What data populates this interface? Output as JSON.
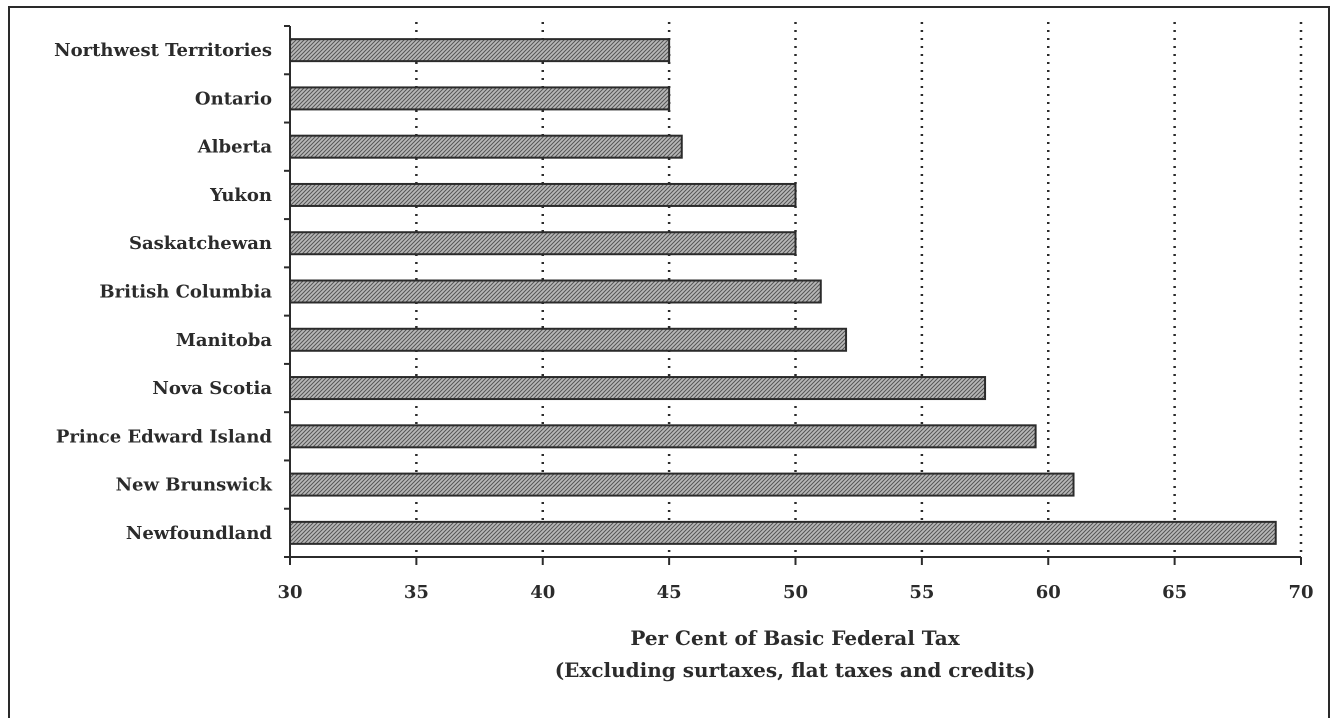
{
  "chart_data": {
    "type": "bar",
    "orientation": "horizontal",
    "categories": [
      "Northwest Territories",
      "Ontario",
      "Alberta",
      "Yukon",
      "Saskatchewan",
      "British Columbia",
      "Manitoba",
      "Nova Scotia",
      "Prince Edward Island",
      "New Brunswick",
      "Newfoundland"
    ],
    "values": [
      45,
      45,
      45.5,
      50,
      50,
      51,
      52,
      57.5,
      59.5,
      61,
      69
    ],
    "xlim": [
      30,
      70
    ],
    "xticks": [
      "30",
      "35",
      "40",
      "45",
      "50",
      "55",
      "60",
      "65",
      "70"
    ],
    "xlabel": "Per Cent of Basic Federal Tax",
    "xlabel_sub": "(Excluding surtaxes, flat taxes and credits)",
    "ylabel": "",
    "grid": "vertical dotted",
    "legend": "none",
    "bar_fill": "#9a9a9a",
    "bar_stroke": "#2b2b2b"
  }
}
